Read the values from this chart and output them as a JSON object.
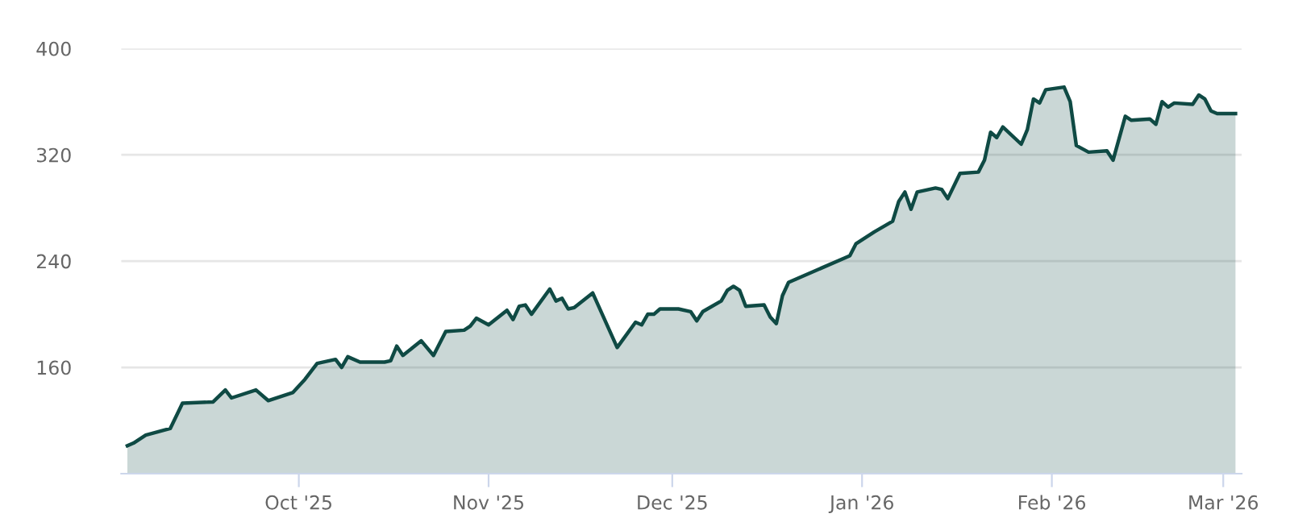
{
  "chart_data": {
    "type": "area",
    "x": [
      "2025-09-03",
      "2025-09-04",
      "2025-09-06",
      "2025-09-10",
      "2025-09-12",
      "2025-09-17",
      "2025-09-19",
      "2025-09-20",
      "2025-09-24",
      "2025-09-26",
      "2025-09-30",
      "2025-10-02",
      "2025-10-04",
      "2025-10-07",
      "2025-10-08",
      "2025-10-09",
      "2025-10-11",
      "2025-10-15",
      "2025-10-16",
      "2025-10-17",
      "2025-10-18",
      "2025-10-21",
      "2025-10-23",
      "2025-10-25",
      "2025-10-28",
      "2025-10-29",
      "2025-10-30",
      "2025-11-01",
      "2025-11-04",
      "2025-11-05",
      "2025-11-06",
      "2025-11-07",
      "2025-11-08",
      "2025-11-11",
      "2025-11-12",
      "2025-11-13",
      "2025-11-14",
      "2025-11-15",
      "2025-11-18",
      "2025-11-22",
      "2025-11-25",
      "2025-11-26",
      "2025-11-27",
      "2025-11-28",
      "2025-11-29",
      "2025-12-02",
      "2025-12-04",
      "2025-12-05",
      "2025-12-06",
      "2025-12-09",
      "2025-12-10",
      "2025-12-11",
      "2025-12-12",
      "2025-12-13",
      "2025-12-16",
      "2025-12-17",
      "2025-12-18",
      "2025-12-19",
      "2025-12-20",
      "2025-12-30",
      "2025-12-31",
      "2026-01-03",
      "2026-01-06",
      "2026-01-07",
      "2026-01-08",
      "2026-01-09",
      "2026-01-10",
      "2026-01-13",
      "2026-01-14",
      "2026-01-15",
      "2026-01-17",
      "2026-01-20",
      "2026-01-21",
      "2026-01-22",
      "2026-01-23",
      "2026-01-24",
      "2026-01-27",
      "2026-01-28",
      "2026-01-29",
      "2026-01-30",
      "2026-01-31",
      "2026-02-03",
      "2026-02-04",
      "2026-02-05",
      "2026-02-07",
      "2026-02-10",
      "2026-02-11",
      "2026-02-13",
      "2026-02-14",
      "2026-02-17",
      "2026-02-18",
      "2026-02-19",
      "2026-02-20",
      "2026-02-21",
      "2026-02-24",
      "2026-02-25",
      "2026-02-26",
      "2026-02-27",
      "2026-02-28",
      "2026-03-03"
    ],
    "series": [
      {
        "color": "#0f4a44",
        "values": [
          101,
          103,
          109,
          114,
          133,
          134,
          143,
          137,
          143,
          135,
          141,
          151,
          163,
          166,
          160,
          168,
          164,
          164,
          165,
          176,
          169,
          180,
          169,
          187,
          188,
          191,
          197,
          192,
          203,
          196,
          206,
          207,
          200,
          219,
          210,
          212,
          204,
          205,
          216,
          175,
          194,
          192,
          200,
          200,
          204,
          204,
          202,
          195,
          202,
          210,
          218,
          221,
          218,
          206,
          207,
          198,
          193,
          214,
          224,
          244,
          253,
          262,
          270,
          285,
          292,
          279,
          292,
          295,
          294,
          287,
          306,
          307,
          316,
          337,
          333,
          341,
          328,
          339,
          362,
          359,
          369,
          371,
          360,
          327,
          322,
          323,
          316,
          349,
          346,
          347,
          343,
          360,
          356,
          359,
          358,
          365,
          362,
          353,
          351,
          351
        ]
      }
    ],
    "xlim": [
      "2025-09-02",
      "2026-03-04"
    ],
    "xticks": [
      {
        "value": "2025-10-01",
        "label": "Oct '25"
      },
      {
        "value": "2025-11-01",
        "label": "Nov '25"
      },
      {
        "value": "2025-12-01",
        "label": "Dec '25"
      },
      {
        "value": "2026-01-01",
        "label": "Jan '26"
      },
      {
        "value": "2026-02-01",
        "label": "Feb '26"
      },
      {
        "value": "2026-03-01",
        "label": "Mar '26"
      }
    ],
    "ylim": [
      80,
      400
    ],
    "yticks": [
      160,
      240,
      320,
      400
    ],
    "grid": "y",
    "marker": "none",
    "line_style": "solid"
  }
}
